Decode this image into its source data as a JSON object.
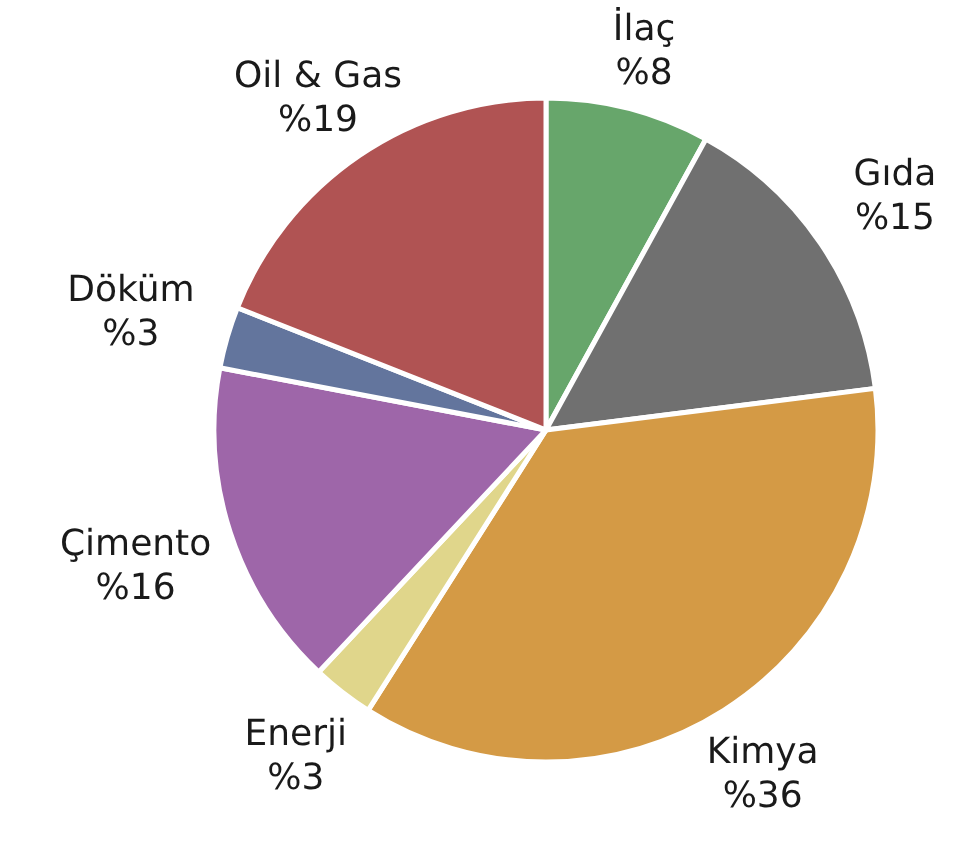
{
  "chart_data": {
    "type": "pie",
    "categories": [
      "İlaç",
      "Gıda",
      "Kimya",
      "Enerji",
      "Çimento",
      "Döküm",
      "Oil & Gas"
    ],
    "values": [
      8,
      15,
      36,
      3,
      16,
      3,
      19
    ],
    "value_labels": [
      "%8",
      "%15",
      "%36",
      "%3",
      "%16",
      "%3",
      "%19"
    ],
    "colors": [
      "#67a66b",
      "#707070",
      "#d49a45",
      "#e0d68b",
      "#9e66a9",
      "#63759d",
      "#b05353"
    ]
  }
}
